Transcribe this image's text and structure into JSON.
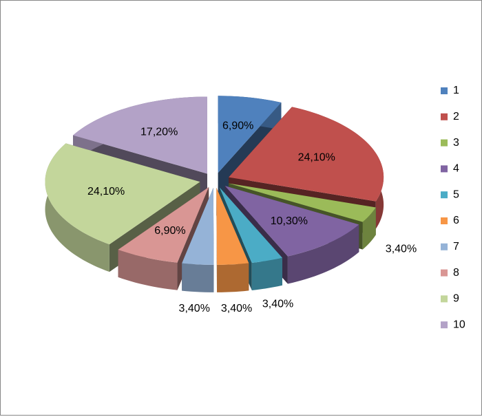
{
  "chart_data": {
    "type": "pie3d",
    "categories": [
      "1",
      "2",
      "3",
      "4",
      "5",
      "6",
      "7",
      "8",
      "9",
      "10"
    ],
    "values": [
      6.9,
      24.1,
      3.4,
      10.3,
      3.4,
      3.4,
      3.4,
      6.9,
      24.1,
      17.2
    ],
    "value_labels": [
      "6,90%",
      "24,10%",
      "3,40%",
      "10,30%",
      "3,40%",
      "3,40%",
      "3,40%",
      "6,90%",
      "24,10%",
      "17,20%"
    ],
    "colors": [
      "#4f81bd",
      "#c0504d",
      "#9bbb59",
      "#8064a2",
      "#4bacc6",
      "#f79646",
      "#95b3d7",
      "#d99694",
      "#c3d69b",
      "#b3a2c7"
    ],
    "legend": "right"
  }
}
